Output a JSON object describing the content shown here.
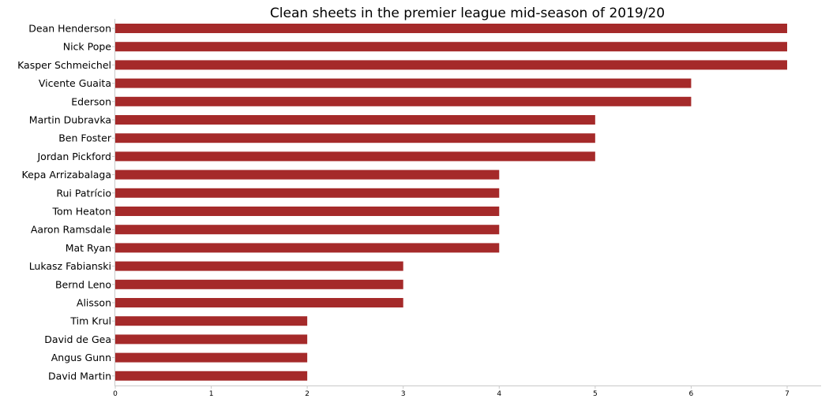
{
  "chart_data": {
    "type": "bar",
    "orientation": "horizontal",
    "title": "Clean sheets in the premier league mid-season of 2019/20",
    "xlabel": "",
    "ylabel": "",
    "categories": [
      "Dean Henderson",
      "Nick Pope",
      "Kasper Schmeichel",
      "Vicente Guaita",
      "Ederson",
      "Martin Dubravka",
      "Ben Foster",
      "Jordan Pickford",
      "Kepa Arrizabalaga",
      "Rui Patrício",
      "Tom Heaton",
      "Aaron Ramsdale",
      "Mat Ryan",
      "Lukasz Fabianski",
      "Bernd Leno",
      "Alisson",
      "Tim Krul",
      "David de Gea",
      "Angus Gunn",
      "David Martin"
    ],
    "values": [
      7,
      7,
      7,
      6,
      6,
      5,
      5,
      5,
      4,
      4,
      4,
      4,
      4,
      3,
      3,
      3,
      2,
      2,
      2,
      2
    ],
    "xlim": [
      0,
      7.35
    ],
    "xticks": [
      "0",
      "1",
      "2",
      "3",
      "4",
      "5",
      "6",
      "7"
    ],
    "bar_color": "#a52a2a",
    "grid": false,
    "legend": "none"
  }
}
